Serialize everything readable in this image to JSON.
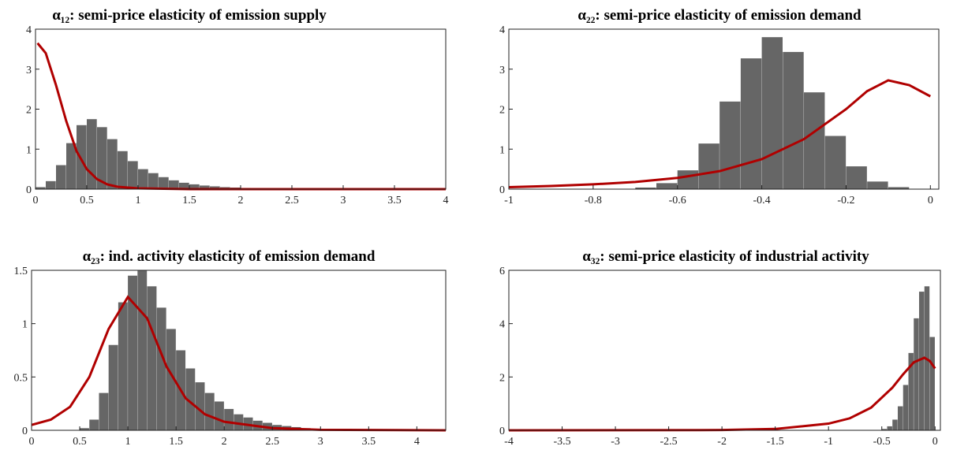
{
  "chart_data": [
    {
      "type": "histogram",
      "title": "α₁₂: semi-price elasticity of emission supply",
      "color": "#666666",
      "bins": [
        0,
        0.1,
        0.2,
        0.3,
        0.4,
        0.5,
        0.6,
        0.7,
        0.8,
        0.9,
        1.0,
        1.1,
        1.2,
        1.3,
        1.4,
        1.5,
        1.6,
        1.7,
        1.8,
        1.9,
        2.0,
        2.1,
        2.2,
        2.3,
        2.4,
        2.5
      ],
      "values": [
        0.05,
        0.2,
        0.6,
        1.15,
        1.6,
        1.75,
        1.55,
        1.25,
        0.95,
        0.7,
        0.5,
        0.4,
        0.3,
        0.22,
        0.16,
        0.12,
        0.09,
        0.07,
        0.05,
        0.04,
        0.03,
        0.02,
        0.02,
        0.01,
        0.01
      ],
      "line": {
        "color": "#b00000",
        "x": [
          0.02,
          0.1,
          0.2,
          0.3,
          0.4,
          0.5,
          0.6,
          0.7,
          0.8,
          1.0,
          1.5,
          4
        ],
        "values": [
          3.65,
          3.4,
          2.6,
          1.7,
          0.95,
          0.5,
          0.25,
          0.12,
          0.06,
          0.02,
          0,
          0
        ]
      },
      "xlim": [
        0,
        4
      ],
      "ylim": [
        0,
        4
      ],
      "xticks": [
        0,
        0.5,
        1,
        1.5,
        2,
        2.5,
        3,
        3.5,
        4
      ],
      "yticks": [
        0,
        1,
        2,
        3,
        4
      ]
    },
    {
      "type": "histogram",
      "title": "α₂₂: semi-price elasticity of emission demand",
      "color": "#666666",
      "bins": [
        -0.7,
        -0.65,
        -0.6,
        -0.55,
        -0.5,
        -0.45,
        -0.4,
        -0.35,
        -0.3,
        -0.25,
        -0.2,
        -0.15,
        -0.1,
        -0.05,
        0
      ],
      "values": [
        0.04,
        0.15,
        0.47,
        1.14,
        2.19,
        3.27,
        3.8,
        3.43,
        2.42,
        1.33,
        0.57,
        0.19,
        0.05,
        0.01
      ],
      "line": {
        "color": "#b00000",
        "x": [
          -1,
          -0.9,
          -0.8,
          -0.7,
          -0.6,
          -0.5,
          -0.4,
          -0.3,
          -0.2,
          -0.15,
          -0.1,
          -0.05,
          0
        ],
        "values": [
          0.05,
          0.08,
          0.12,
          0.18,
          0.28,
          0.45,
          0.75,
          1.25,
          2.0,
          2.45,
          2.72,
          2.6,
          2.32
        ]
      },
      "xlim": [
        -1,
        0.02
      ],
      "ylim": [
        0,
        4
      ],
      "xticks": [
        -1,
        -0.8,
        -0.6,
        -0.4,
        -0.2,
        0
      ],
      "yticks": [
        0,
        1,
        2,
        3,
        4
      ]
    },
    {
      "type": "histogram",
      "title": "α₂₃: ind. activity elasticity of emission demand",
      "color": "#666666",
      "bins": [
        0.5,
        0.6,
        0.7,
        0.8,
        0.9,
        1.0,
        1.1,
        1.2,
        1.3,
        1.4,
        1.5,
        1.6,
        1.7,
        1.8,
        1.9,
        2.0,
        2.1,
        2.2,
        2.3,
        2.4,
        2.5,
        2.6,
        2.7,
        2.8,
        2.9,
        3.0
      ],
      "values": [
        0.02,
        0.1,
        0.35,
        0.8,
        1.2,
        1.45,
        1.5,
        1.35,
        1.15,
        0.95,
        0.75,
        0.58,
        0.45,
        0.35,
        0.27,
        0.2,
        0.15,
        0.12,
        0.09,
        0.07,
        0.05,
        0.04,
        0.03,
        0.02,
        0.01
      ],
      "line": {
        "color": "#b00000",
        "x": [
          0,
          0.2,
          0.4,
          0.6,
          0.8,
          1.0,
          1.2,
          1.4,
          1.6,
          1.8,
          2.0,
          2.5,
          3,
          4.3
        ],
        "values": [
          0.05,
          0.1,
          0.22,
          0.5,
          0.95,
          1.25,
          1.05,
          0.6,
          0.3,
          0.15,
          0.08,
          0.02,
          0.005,
          0
        ]
      },
      "xlim": [
        0,
        4.3
      ],
      "ylim": [
        0,
        1.5
      ],
      "xticks": [
        0,
        0.5,
        1,
        1.5,
        2,
        2.5,
        3,
        3.5,
        4
      ],
      "yticks": [
        0,
        0.5,
        1,
        1.5
      ]
    },
    {
      "type": "histogram",
      "title": "α₃₂: semi-price elasticity of industrial activity",
      "color": "#666666",
      "bins": [
        -0.5,
        -0.45,
        -0.4,
        -0.35,
        -0.3,
        -0.25,
        -0.2,
        -0.15,
        -0.1,
        -0.05,
        0
      ],
      "values": [
        0.05,
        0.15,
        0.4,
        0.9,
        1.7,
        2.9,
        4.2,
        5.2,
        5.4,
        3.5
      ],
      "line": {
        "color": "#b00000",
        "x": [
          -4,
          -2,
          -1.5,
          -1,
          -0.8,
          -0.6,
          -0.4,
          -0.3,
          -0.2,
          -0.1,
          -0.05,
          0
        ],
        "values": [
          0,
          0.01,
          0.05,
          0.25,
          0.45,
          0.85,
          1.6,
          2.1,
          2.55,
          2.72,
          2.6,
          2.32
        ]
      },
      "xlim": [
        -4,
        0.05
      ],
      "ylim": [
        0,
        6
      ],
      "xticks": [
        -4,
        -3.5,
        -3,
        -2.5,
        -2,
        -1.5,
        -1,
        -0.5,
        0
      ],
      "yticks": [
        0,
        2,
        4,
        6
      ]
    }
  ]
}
